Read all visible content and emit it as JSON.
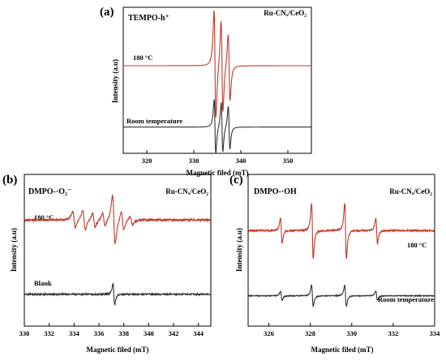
{
  "colors": {
    "red_curve": "#c0392b",
    "black_curve": "#333333",
    "axis": "#000000",
    "background": "#ffffff"
  },
  "chart_data": [
    {
      "type": "line",
      "panel_label": "(a)",
      "title": "TEMPO-h⁺",
      "legend_text": "Ru-CNₓ/CeO₂",
      "xlabel": "Magnetic filed (mT)",
      "ylabel": "Intensity (a.u)",
      "xlim": [
        315,
        355
      ],
      "xticks": [
        320,
        330,
        340,
        350
      ],
      "grid": false,
      "series": [
        {
          "name": "180 °C",
          "color": "red",
          "baseline_frac": 0.4,
          "amplitude_frac": 0.44,
          "peaks": [
            {
              "x": 334.5,
              "a": 1.0
            },
            {
              "x": 336.0,
              "a": 0.85
            },
            {
              "x": 337.5,
              "a": 0.62
            }
          ],
          "width": 0.34
        },
        {
          "name": "Room temperature",
          "color": "black",
          "baseline_frac": 0.82,
          "amplitude_frac": 0.22,
          "peaks": [
            {
              "x": 334.5,
              "a": 1.0
            },
            {
              "x": 336.0,
              "a": 0.92
            },
            {
              "x": 337.5,
              "a": 0.8
            }
          ],
          "width": 0.3
        }
      ]
    },
    {
      "type": "line",
      "panel_label": "(b)",
      "title": "DMPO-·O₂⁻",
      "legend_text": "Ru-CNₓ/CeO₂",
      "xlabel": "Magnetic filed  (mT)",
      "ylabel": "Intensity (a.u)",
      "xlim": [
        330,
        345
      ],
      "xticks": [
        330,
        332,
        334,
        336,
        338,
        340,
        342,
        344
      ],
      "grid": false,
      "series": [
        {
          "name": "180 °C",
          "color": "red",
          "baseline_frac": 0.3,
          "amplitude_frac": 0.14,
          "noise": 0.05,
          "peaks": [
            {
              "x": 334.0,
              "a": 0.45
            },
            {
              "x": 334.8,
              "a": 0.55
            },
            {
              "x": 335.6,
              "a": 0.4
            },
            {
              "x": 336.4,
              "a": 0.35
            },
            {
              "x": 337.2,
              "a": 1.35
            },
            {
              "x": 337.9,
              "a": 0.5
            },
            {
              "x": 338.6,
              "a": 0.25
            }
          ],
          "width": 0.18
        },
        {
          "name": "Blank",
          "color": "black",
          "baseline_frac": 0.79,
          "amplitude_frac": 0.08,
          "noise": 0.06,
          "peaks": [
            {
              "x": 337.2,
              "a": 1.0
            }
          ],
          "width": 0.12
        }
      ]
    },
    {
      "type": "line",
      "panel_label": "(c)",
      "title": "DMPO-·OH",
      "legend_text": "Ru-CNₓ/CeO₂",
      "xlabel": "Magnetic filed  (mT)",
      "ylabel": "Intensity (a.u)",
      "xlim": [
        325,
        334
      ],
      "xticks": [
        326,
        328,
        330,
        332,
        334
      ],
      "grid": false,
      "series": [
        {
          "name": "180 °C",
          "color": "red",
          "baseline_frac": 0.37,
          "amplitude_frac": 0.18,
          "noise": 0.03,
          "peaks": [
            {
              "x": 326.6,
              "a": 0.55
            },
            {
              "x": 328.1,
              "a": 1.2
            },
            {
              "x": 329.7,
              "a": 1.2
            },
            {
              "x": 331.2,
              "a": 0.55
            }
          ],
          "width": 0.07
        },
        {
          "name": "Room temperature",
          "color": "black",
          "baseline_frac": 0.8,
          "amplitude_frac": 0.07,
          "noise": 0.04,
          "peaks": [
            {
              "x": 326.6,
              "a": 0.5
            },
            {
              "x": 328.1,
              "a": 1.2
            },
            {
              "x": 329.7,
              "a": 1.2
            },
            {
              "x": 331.2,
              "a": 0.5
            }
          ],
          "width": 0.07
        }
      ]
    }
  ]
}
